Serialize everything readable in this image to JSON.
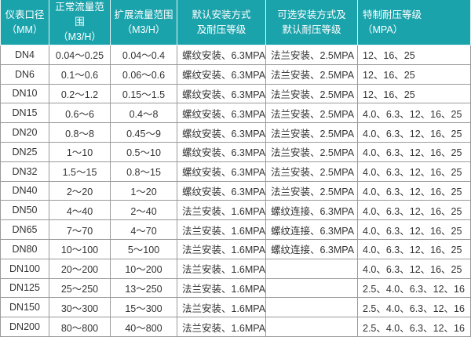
{
  "headers": [
    [
      "仪表口径",
      "（MM）"
    ],
    [
      "正常流量范围",
      "（M3/H）"
    ],
    [
      "扩展流量范围",
      "（M3/H）"
    ],
    [
      "默认安装方式",
      "及耐压等级"
    ],
    [
      "可选安装方式及",
      "默认耐压等级"
    ],
    [
      "特制耐压等级",
      "（MPA）"
    ]
  ],
  "rows": [
    [
      "DN4",
      "0.04～0.25",
      "0.04～0.4",
      "螺纹安装、6.3MPA",
      "法兰安装、2.5MPA",
      "12、16、25"
    ],
    [
      "DN6",
      "0.1～0.6",
      "0.06～0.6",
      "螺纹安装、6.3MPA",
      "法兰安装、2.5MPA",
      "12、16、25"
    ],
    [
      "DN10",
      "0.2～1.2",
      "0.15～1.5",
      "螺纹安装、6.3MPA",
      "法兰安装、2.5MPA",
      "12、16、25"
    ],
    [
      "DN15",
      "0.6～6",
      "0.4～8",
      "螺纹安装、6.3MPA",
      "法兰安装、2.5MPA",
      "4.0、6.3、12、16、25"
    ],
    [
      "DN20",
      "0.8～8",
      "0.45～9",
      "螺纹安装、6.3MPA",
      "法兰安装、2.5MPA",
      "4.0、6.3、12、16、25"
    ],
    [
      "DN25",
      "1～10",
      "0.5～10",
      "螺纹安装、6.3MPA",
      "法兰安装、2.5MPA",
      "4.0、6.3、12、16、25"
    ],
    [
      "DN32",
      "1.5～15",
      "0.8～15",
      "螺纹安装、6.3MPA",
      "法兰安装、2.5MPA",
      "4.0、6.3、12、16、25"
    ],
    [
      "DN40",
      "2～20",
      "1～20",
      "螺纹安装、6.3MPA",
      "法兰安装、2.5MPA",
      "4.0、6.3、12、16、25"
    ],
    [
      "DN50",
      "4～40",
      "2～40",
      "法兰安装、1.6MPA",
      "螺纹连接、6.3MPA",
      "4.0、6.3、12、16、25"
    ],
    [
      "DN65",
      "7～70",
      "4～70",
      "法兰安装、1.6MPA",
      "螺纹连接、6.3MPA",
      "4.0、6.3、12、16、25"
    ],
    [
      "DN80",
      "10～100",
      "5～100",
      "法兰安装、1.6MPA",
      "螺纹连接、6.3MPA",
      "4.0、6.3、12、16、25"
    ],
    [
      "DN100",
      "20～200",
      "10～200",
      "法兰安装、1.6MPA",
      "",
      "4.0、6.3、12、16、25"
    ],
    [
      "DN125",
      "25～250",
      "13～250",
      "法兰安装、1.6MPA",
      "",
      "2.5、4.0、6.3、12、16"
    ],
    [
      "DN150",
      "30～300",
      "15～300",
      "法兰安装、1.6MPA",
      "",
      "2.5、4.0、6.3、12、16"
    ],
    [
      "DN200",
      "80～800",
      "40～800",
      "法兰安装、1.6MPA",
      "",
      "2.5、4.0、6.3、12、16"
    ]
  ],
  "colors": {
    "header_bg": "#1ba3ac",
    "header_text": "#ffffff",
    "border": "#9a9a9a"
  }
}
